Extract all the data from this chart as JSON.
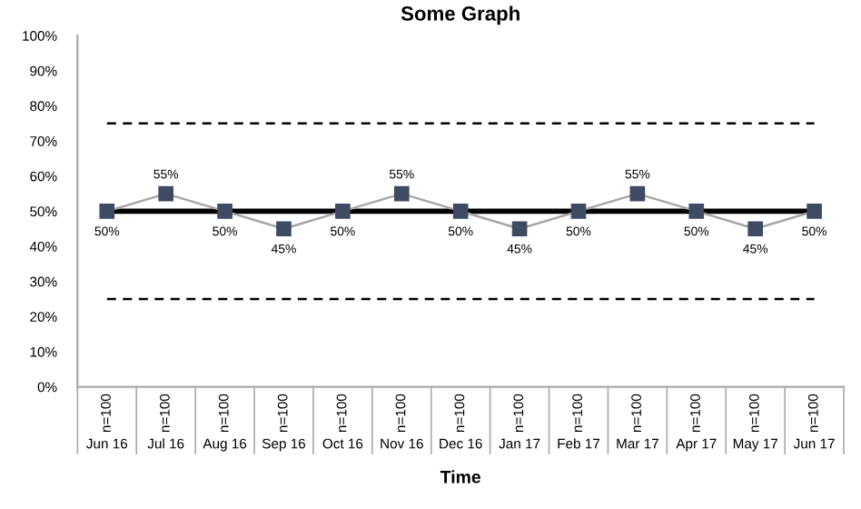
{
  "chart_data": {
    "type": "line",
    "title": "Some Graph",
    "xlabel": "Time",
    "categories": [
      "Jun 16",
      "Jul 16",
      "Aug 16",
      "Sep 16",
      "Oct 16",
      "Nov 16",
      "Dec 16",
      "Jan 17",
      "Feb 17",
      "Mar 17",
      "Apr 17",
      "May 17",
      "Jun 17"
    ],
    "series": [
      {
        "color": "#3f4a63",
        "values": [
          50,
          55,
          50,
          45,
          50,
          55,
          50,
          45,
          50,
          55,
          50,
          45,
          50
        ],
        "value_labels": [
          "50%",
          "55%",
          "50%",
          "45%",
          "50%",
          "55%",
          "50%",
          "45%",
          "50%",
          "55%",
          "50%",
          "45%",
          "50%"
        ]
      }
    ],
    "marker": "square",
    "grid": false,
    "ylim": [
      0,
      100
    ],
    "yticks": [
      {
        "value": 0,
        "label": "0%"
      },
      {
        "value": 10,
        "label": "10%"
      },
      {
        "value": 20,
        "label": "20%"
      },
      {
        "value": 30,
        "label": "30%"
      },
      {
        "value": 40,
        "label": "40%"
      },
      {
        "value": 50,
        "label": "50%"
      },
      {
        "value": 60,
        "label": "60%"
      },
      {
        "value": 70,
        "label": "70%"
      },
      {
        "value": 80,
        "label": "80%"
      },
      {
        "value": 90,
        "label": "90%"
      },
      {
        "value": 100,
        "label": "100%"
      }
    ],
    "ref_lines": [
      {
        "axis": "y",
        "value": 75,
        "color": "#000000",
        "line_style": "dashed"
      },
      {
        "axis": "y",
        "value": 50,
        "color": "#000000",
        "line_style": "solid"
      },
      {
        "axis": "y",
        "value": 25,
        "color": "#000000",
        "line_style": "dashed"
      }
    ],
    "annotations": [
      "n=100",
      "n=100",
      "n=100",
      "n=100",
      "n=100",
      "n=100",
      "n=100",
      "n=100",
      "n=100",
      "n=100",
      "n=100",
      "n=100",
      "n=100"
    ]
  }
}
